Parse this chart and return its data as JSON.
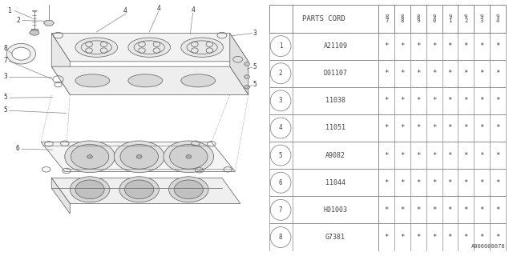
{
  "bg_color": "#ffffff",
  "diagram_code": "A006000078",
  "table": {
    "header_col": "PARTS CORD",
    "year_cols": [
      "8\n7",
      "8\n8",
      "8\n9",
      "9\n0",
      "9\n1",
      "9\n2",
      "9\n3",
      "9\n4"
    ],
    "rows": [
      {
        "num": 1,
        "part": "A21109",
        "marks": [
          "*",
          "*",
          "*",
          "*",
          "*",
          "*",
          "*",
          "*"
        ]
      },
      {
        "num": 2,
        "part": "D01107",
        "marks": [
          "*",
          "*",
          "*",
          "*",
          "*",
          "*",
          "*",
          "*"
        ]
      },
      {
        "num": 3,
        "part": "11038",
        "marks": [
          "*",
          "*",
          "*",
          "*",
          "*",
          "*",
          "*",
          "*"
        ]
      },
      {
        "num": 4,
        "part": "11051",
        "marks": [
          "*",
          "*",
          "*",
          "*",
          "*",
          "*",
          "*",
          "*"
        ]
      },
      {
        "num": 5,
        "part": "A9082",
        "marks": [
          "*",
          "*",
          "*",
          "*",
          "*",
          "*",
          "*",
          "*"
        ]
      },
      {
        "num": 6,
        "part": "11044",
        "marks": [
          "*",
          "*",
          "*",
          "*",
          "*",
          "*",
          "*",
          "*"
        ]
      },
      {
        "num": 7,
        "part": "H01003",
        "marks": [
          "*",
          "*",
          "*",
          "*",
          "*",
          "*",
          "*",
          "*"
        ]
      },
      {
        "num": 8,
        "part": "G7381",
        "marks": [
          "*",
          "*",
          "*",
          "*",
          "*",
          "*",
          "*",
          "*"
        ]
      }
    ]
  },
  "line_color": "#888888",
  "text_color": "#444444",
  "draw_color": "#666666"
}
